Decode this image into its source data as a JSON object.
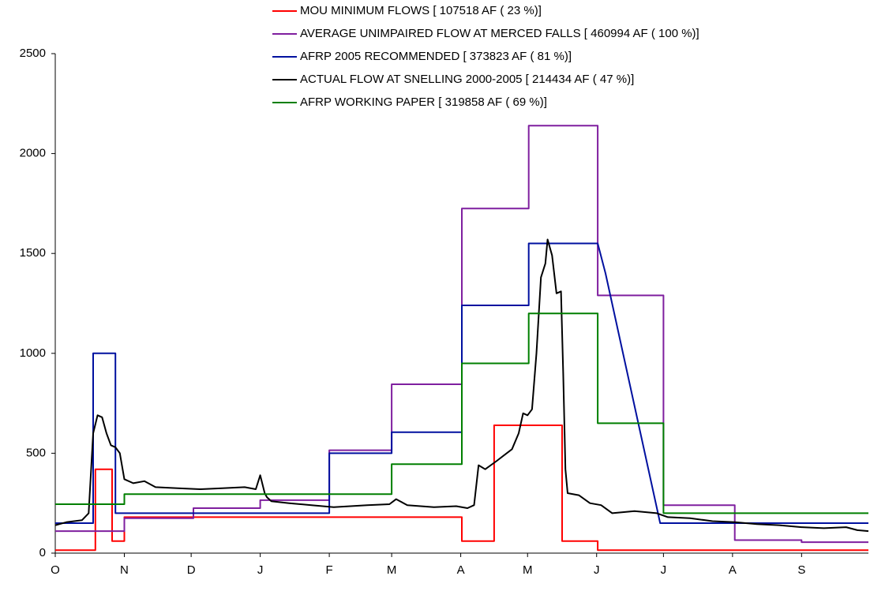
{
  "chart_data": {
    "type": "line",
    "xlim": [
      0,
      365
    ],
    "xticks": [
      {
        "value": 0,
        "label": "O"
      },
      {
        "value": 31,
        "label": "N"
      },
      {
        "value": 61,
        "label": "D"
      },
      {
        "value": 92,
        "label": "J"
      },
      {
        "value": 123,
        "label": "F"
      },
      {
        "value": 151,
        "label": "M"
      },
      {
        "value": 182,
        "label": "A"
      },
      {
        "value": 212,
        "label": "M"
      },
      {
        "value": 243,
        "label": "J"
      },
      {
        "value": 273,
        "label": "J"
      },
      {
        "value": 304,
        "label": "A"
      },
      {
        "value": 335,
        "label": "S"
      }
    ],
    "ylim": [
      0,
      2500
    ],
    "yticks": [
      0,
      500,
      1000,
      1500,
      2000,
      2500
    ],
    "series": [
      {
        "name": "MOU MINIMUM FLOWS  [ 107518 AF ( 23 %)]",
        "color": "#ff0000",
        "x": [
          0,
          18,
          18,
          25.5,
          25.5,
          31,
          31,
          182.5,
          182.5,
          197,
          197,
          227.5,
          227.5,
          243.5,
          243.5,
          365
        ],
        "values": [
          15,
          15,
          420,
          420,
          60,
          60,
          180,
          180,
          60,
          60,
          640,
          640,
          60,
          60,
          15,
          15
        ]
      },
      {
        "name": "AVERAGE UNIMPAIRED FLOW AT MERCED FALLS [ 460994 AF ( 100 %)]",
        "color": "#7f1f9f",
        "x": [
          0,
          31,
          31,
          62,
          62,
          92,
          92,
          123,
          123,
          151,
          151,
          182.5,
          182.5,
          212.5,
          212.5,
          243.5,
          243.5,
          273,
          273,
          305,
          305,
          335,
          335,
          365
        ],
        "values": [
          110,
          110,
          175,
          175,
          225,
          225,
          265,
          265,
          515,
          515,
          845,
          845,
          1725,
          1725,
          2140,
          2140,
          1290,
          1290,
          240,
          240,
          65,
          65,
          55,
          55
        ]
      },
      {
        "name": "AFRP 2005 RECOMMENDED [ 373823 AF ( 81 %)]",
        "color": "#00109f",
        "x": [
          0,
          17,
          17,
          27,
          27,
          123,
          123,
          151,
          151,
          182.5,
          182.5,
          212.5,
          212.5,
          243.5,
          247,
          271.5,
          365
        ],
        "values": [
          150,
          150,
          1000,
          1000,
          200,
          200,
          500,
          500,
          605,
          605,
          1240,
          1240,
          1550,
          1550,
          1400,
          150,
          150
        ]
      },
      {
        "name": "ACTUAL FLOW AT SNELLING 2000-2005 [ 214434 AF ( 47 %)]",
        "color": "#000000",
        "x": [
          0,
          5,
          12,
          15,
          17,
          19,
          21,
          23,
          25,
          27,
          29,
          31,
          35,
          40,
          45,
          55,
          65,
          75,
          85,
          90,
          92,
          94,
          95,
          97,
          105,
          115,
          125,
          140,
          150,
          153,
          158,
          170,
          180,
          185,
          188,
          190,
          193,
          198,
          205,
          208,
          210,
          212,
          214,
          216,
          218,
          220,
          221,
          223,
          225,
          227,
          228,
          229,
          230,
          235,
          240,
          245,
          250,
          260,
          270,
          275,
          285,
          295,
          305,
          315,
          325,
          335,
          345,
          355,
          360,
          365
        ],
        "values": [
          140,
          155,
          165,
          200,
          600,
          690,
          680,
          600,
          540,
          530,
          500,
          370,
          350,
          360,
          330,
          325,
          320,
          325,
          330,
          320,
          390,
          300,
          280,
          260,
          250,
          240,
          230,
          240,
          245,
          270,
          240,
          230,
          235,
          225,
          240,
          440,
          420,
          460,
          520,
          600,
          700,
          690,
          720,
          1000,
          1380,
          1450,
          1570,
          1490,
          1300,
          1310,
          900,
          420,
          300,
          290,
          250,
          240,
          200,
          210,
          200,
          180,
          175,
          160,
          155,
          145,
          140,
          130,
          125,
          130,
          115,
          110
        ]
      },
      {
        "name": "AFRP  WORKING PAPER  [ 319858 AF ( 69 %)]",
        "color": "#007f00",
        "x": [
          0,
          31,
          31,
          151,
          151,
          182.5,
          182.5,
          212.5,
          212.5,
          243.5,
          243.5,
          273,
          273,
          365
        ],
        "values": [
          245,
          245,
          295,
          295,
          445,
          445,
          950,
          950,
          1200,
          1200,
          650,
          650,
          200,
          200
        ]
      }
    ]
  }
}
